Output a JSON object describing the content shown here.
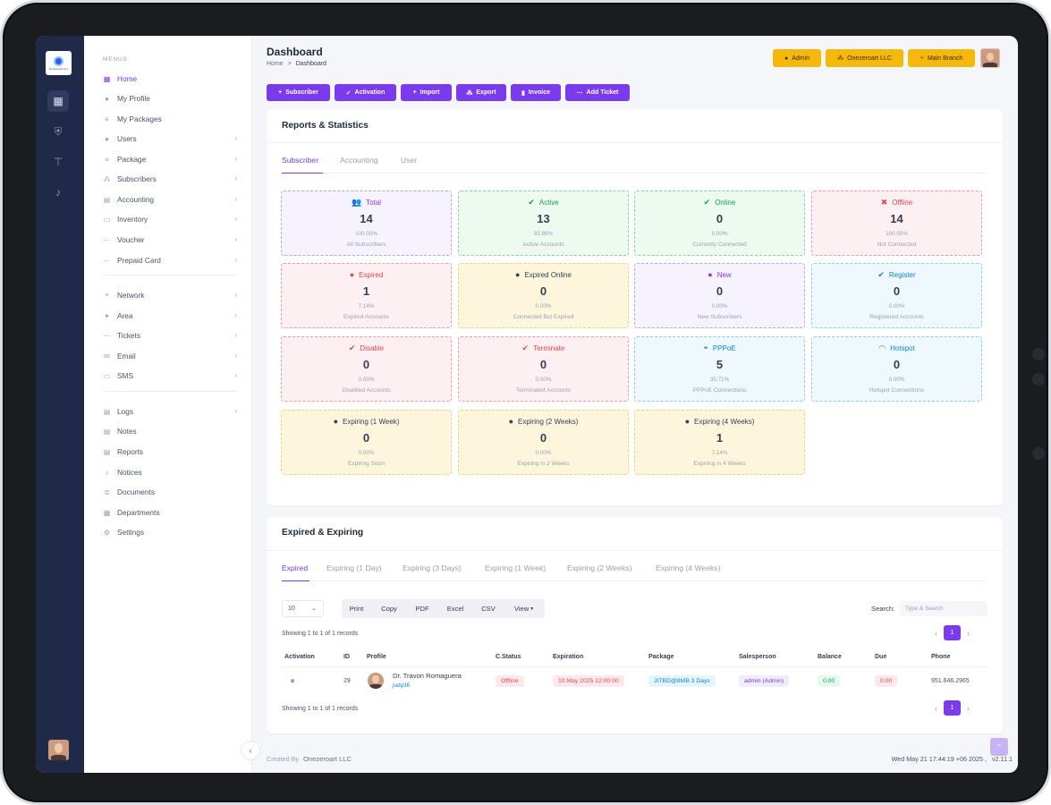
{
  "colors": {
    "accent": "#7c3aed",
    "topButton": "#f5b90b",
    "rail": "#1f2a48"
  },
  "rail": {
    "logo_text": "Onezeroart LLC",
    "icons": [
      "dashboard-icon",
      "shield-icon",
      "network-tree-icon",
      "bell-icon"
    ]
  },
  "menu": {
    "caption": "MENUS",
    "items": [
      {
        "label": "Home",
        "icon": "grid-icon",
        "glyph": "▦",
        "chevron": false,
        "active": true
      },
      {
        "label": "My Profile",
        "icon": "user-icon",
        "glyph": "●",
        "chevron": false
      },
      {
        "label": "My Packages",
        "icon": "package-icon",
        "glyph": "≡",
        "chevron": false
      },
      {
        "label": "Users",
        "icon": "user-icon",
        "glyph": "●",
        "chevron": true
      },
      {
        "label": "Package",
        "icon": "package-icon",
        "glyph": "≡",
        "chevron": true
      },
      {
        "label": "Subscribers",
        "icon": "users-icon",
        "glyph": "⁂",
        "chevron": true
      },
      {
        "label": "Accounting",
        "icon": "calculator-icon",
        "glyph": "▤",
        "chevron": true
      },
      {
        "label": "Inventory",
        "icon": "inventory-icon",
        "glyph": "▭",
        "chevron": true
      },
      {
        "label": "Voucher",
        "icon": "ticket-icon",
        "glyph": "⋯",
        "chevron": true
      },
      {
        "label": "Prepaid Card",
        "icon": "card-icon",
        "glyph": "⋯",
        "chevron": true
      },
      {
        "label": "Network",
        "icon": "antenna-icon",
        "glyph": "⌖",
        "chevron": true
      },
      {
        "label": "Area",
        "icon": "pin-icon",
        "glyph": "✦",
        "chevron": true
      },
      {
        "label": "Tickets",
        "icon": "ticket-icon",
        "glyph": "⋯",
        "chevron": true
      },
      {
        "label": "Email",
        "icon": "mail-icon",
        "glyph": "✉",
        "chevron": true
      },
      {
        "label": "SMS",
        "icon": "message-icon",
        "glyph": "▭",
        "chevron": true
      },
      {
        "label": "Logs",
        "icon": "logs-icon",
        "glyph": "▤",
        "chevron": true
      },
      {
        "label": "Notes",
        "icon": "note-icon",
        "glyph": "▤",
        "chevron": false
      },
      {
        "label": "Reports",
        "icon": "report-icon",
        "glyph": "▤",
        "chevron": false
      },
      {
        "label": "Notices",
        "icon": "bell-icon",
        "glyph": "♪",
        "chevron": false
      },
      {
        "label": "Documents",
        "icon": "document-icon",
        "glyph": "≣",
        "chevron": false
      },
      {
        "label": "Departments",
        "icon": "department-icon",
        "glyph": "▦",
        "chevron": false
      },
      {
        "label": "Settings",
        "icon": "gear-icon",
        "glyph": "⚙",
        "chevron": false
      }
    ]
  },
  "header": {
    "title": "Dashboard",
    "breadcrumb": {
      "home": "Home",
      "sep": ">",
      "current": "Dashboard"
    },
    "buttons": [
      {
        "label": "Admin",
        "icon": "user-icon",
        "glyph": "●"
      },
      {
        "label": "Onezeroart LLC",
        "icon": "company-icon",
        "glyph": "⁂"
      },
      {
        "label": "Main Branch",
        "icon": "branch-icon",
        "glyph": "⑂"
      }
    ]
  },
  "actions": [
    {
      "label": "Subscriber",
      "icon": "user-plus-icon"
    },
    {
      "label": "Activation",
      "icon": "user-check-icon"
    },
    {
      "label": "Import",
      "icon": "user-plus-icon"
    },
    {
      "label": "Export",
      "icon": "users-icon"
    },
    {
      "label": "Invoice",
      "icon": "file-icon"
    },
    {
      "label": "Add Ticket",
      "icon": "ticket-icon"
    }
  ],
  "stats": {
    "title": "Reports & Statistics",
    "tabs": [
      "Subscriber",
      "Accounting",
      "User"
    ],
    "cards": [
      {
        "label": "Total",
        "value": "14",
        "percent": "100.00%",
        "desc": "All Subscribers",
        "tone": "purple",
        "icon": "users-icon",
        "glyph": "👥"
      },
      {
        "label": "Active",
        "value": "13",
        "percent": "92.86%",
        "desc": "Active Accounts",
        "tone": "green",
        "icon": "check-circle-icon",
        "glyph": "✔"
      },
      {
        "label": "Online",
        "value": "0",
        "percent": "0.00%",
        "desc": "Currently Connected",
        "tone": "green",
        "icon": "user-check-icon",
        "glyph": "✔"
      },
      {
        "label": "Offline",
        "value": "14",
        "percent": "100.00%",
        "desc": "Not Connected",
        "tone": "red",
        "icon": "user-x-icon",
        "glyph": "✖"
      },
      {
        "label": "Expired",
        "value": "1",
        "percent": "7.14%",
        "desc": "Expired Accounts",
        "tone": "red",
        "icon": "user-clock-icon",
        "glyph": "●"
      },
      {
        "label": "Expired Online",
        "value": "0",
        "percent": "0.00%",
        "desc": "Connected But Expired",
        "tone": "yellow",
        "icon": "user-x-icon",
        "glyph": "●"
      },
      {
        "label": "New",
        "value": "0",
        "percent": "0.00%",
        "desc": "New Subscribers",
        "tone": "purple",
        "icon": "user-icon",
        "glyph": "●"
      },
      {
        "label": "Register",
        "value": "0",
        "percent": "0.00%",
        "desc": "Registered Accounts",
        "tone": "blue",
        "icon": "badge-check-icon",
        "glyph": "✔"
      },
      {
        "label": "Disable",
        "value": "0",
        "percent": "0.00%",
        "desc": "Disabled Accounts",
        "tone": "red",
        "icon": "check-circle-icon",
        "glyph": "✔"
      },
      {
        "label": "Terminate",
        "value": "0",
        "percent": "0.00%",
        "desc": "Terminated Accounts",
        "tone": "red",
        "icon": "check-circle-icon",
        "glyph": "✔"
      },
      {
        "label": "PPPoE",
        "value": "5",
        "percent": "35.71%",
        "desc": "PPPoE Connections",
        "tone": "blue",
        "icon": "network-icon",
        "glyph": "◓"
      },
      {
        "label": "Hotspot",
        "value": "0",
        "percent": "0.00%",
        "desc": "Hotspot Connections",
        "tone": "blue",
        "icon": "wifi-icon",
        "glyph": "◠"
      },
      {
        "label": "Expiring (1 Week)",
        "value": "0",
        "percent": "0.00%",
        "desc": "Expiring Soon",
        "tone": "yellow",
        "icon": "user-clock-icon",
        "glyph": "●"
      },
      {
        "label": "Expiring (2 Weeks)",
        "value": "0",
        "percent": "0.00%",
        "desc": "Expiring in 2 Weeks",
        "tone": "yellow",
        "icon": "user-clock-icon",
        "glyph": "●"
      },
      {
        "label": "Expiring (4 Weeks)",
        "value": "1",
        "percent": "7.14%",
        "desc": "Expiring in 4 Weeks",
        "tone": "yellow",
        "icon": "user-clock-icon",
        "glyph": "●"
      }
    ]
  },
  "expired": {
    "title": "Expired & Expiring",
    "tabs": [
      "Expired",
      "Expiring (1 Day)",
      "Expiring (3 Days)",
      "Expiring (1 Week)",
      "Expiring (2 Weeks)",
      "Expiring (4 Weeks)"
    ],
    "page_length": "10",
    "buttons": [
      "Print",
      "Copy",
      "PDF",
      "Excel",
      "CSV",
      "View"
    ],
    "search_label": "Search:",
    "search_placeholder": "Type & Search",
    "info_top": "Showing 1 to 1 of 1 records",
    "info_bottom": "Showing 1 to 1 of 1 records",
    "page": "1",
    "columns": [
      "Activation",
      "ID",
      "Profile",
      "C.Status",
      "Expiration",
      "Package",
      "Salesperson",
      "Balance",
      "Due",
      "Phone"
    ],
    "rows": [
      {
        "id": "29",
        "name": "Dr. Travon Romaguera",
        "username": "judy36",
        "status": "Offline",
        "expiration": "10 May 2025 12:00:00",
        "package": "JITBD@8MB 3 Days",
        "salesperson": "admin (Admin)",
        "balance": "0.00",
        "due": "0.00",
        "phone": "951.646.2965"
      }
    ]
  },
  "footer": {
    "created_by": "Created By",
    "org": "Onezeroart LLC",
    "datetime": "Wed May 21 17:44:19 +06 2025 ,",
    "version": "v2.11.1"
  }
}
